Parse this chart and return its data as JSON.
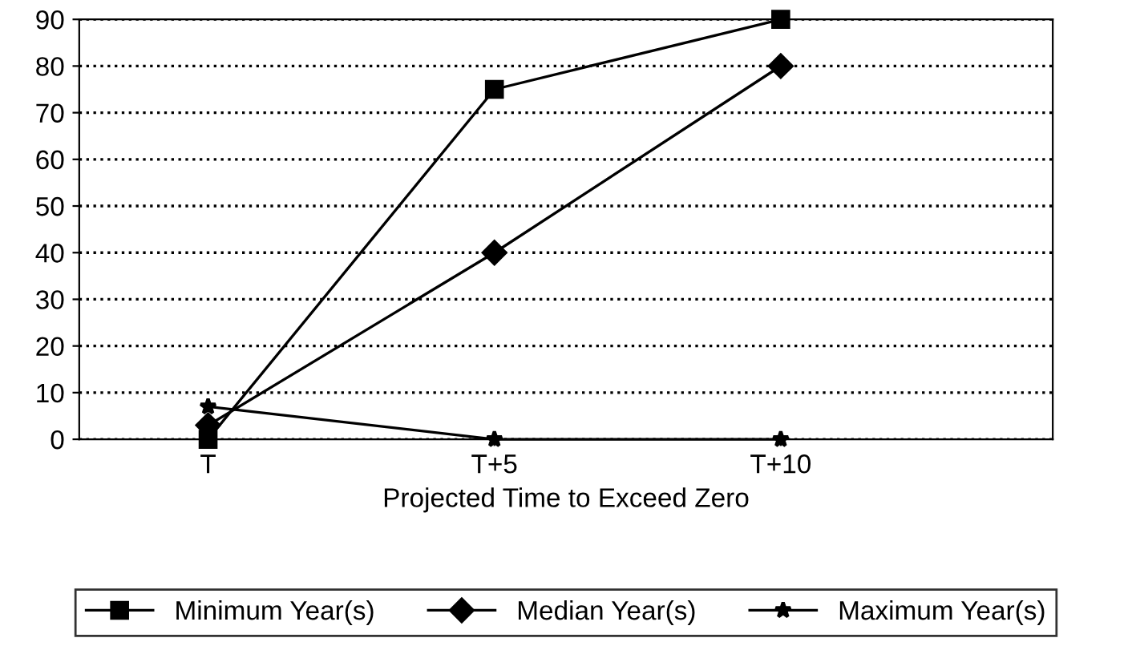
{
  "chart_data": {
    "type": "line",
    "xlabel": "Projected Time to Exceed Zero",
    "categories": [
      "T",
      "T+5",
      "T+10"
    ],
    "series": [
      {
        "name": "Minimum Year(s)",
        "color": "#000000",
        "marker": "square",
        "values": [
          0,
          75,
          90
        ]
      },
      {
        "name": "Median Year(s)",
        "color": "#000000",
        "marker": "diamond",
        "values": [
          3,
          40,
          80
        ]
      },
      {
        "name": "Maximum Year(s)",
        "color": "#000000",
        "marker": "star",
        "values": [
          7,
          0,
          0
        ]
      }
    ],
    "ylim": [
      0,
      90
    ],
    "yticks": [
      0,
      10,
      20,
      30,
      40,
      50,
      60,
      70,
      80,
      90
    ],
    "grid": "y",
    "legend": "bottom",
    "line_style": "solid"
  }
}
